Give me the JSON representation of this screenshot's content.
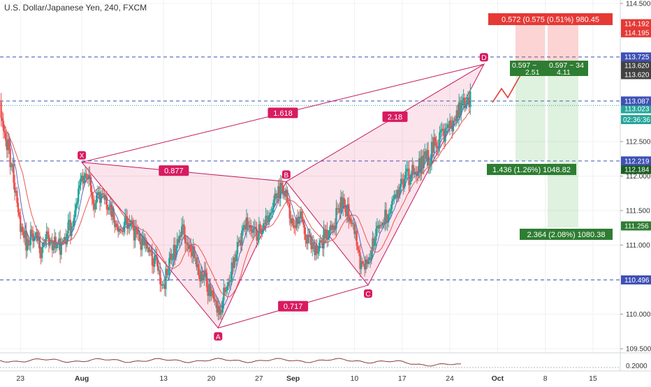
{
  "header": {
    "title": "U.S. Dollar/Japanese Yen, 240, FXCM"
  },
  "chart_data": {
    "type": "candlestick",
    "ylim": [
      109.45,
      114.55
    ],
    "xlim": [
      -4,
      87
    ],
    "y_ticks": [
      "114.500",
      "112.500",
      "112.000",
      "111.500",
      "111.000",
      "110.000",
      "109.500"
    ],
    "x_ticks": [
      {
        "label": "23",
        "day": -1
      },
      {
        "label": "Aug",
        "day": 8
      },
      {
        "label": "13",
        "day": 20
      },
      {
        "label": "20",
        "day": 27
      },
      {
        "label": "27",
        "day": 34
      },
      {
        "label": "Sep",
        "day": 39
      },
      {
        "label": "10",
        "day": 48
      },
      {
        "label": "17",
        "day": 55
      },
      {
        "label": "24",
        "day": 62
      },
      {
        "label": "Oct",
        "day": 69
      },
      {
        "label": "8",
        "day": 76
      },
      {
        "label": "15",
        "day": 83
      }
    ],
    "close_series": [
      [
        -4,
        113.08
      ],
      [
        -3,
        112.5
      ],
      [
        -2,
        112.0
      ],
      [
        -1,
        111.3
      ],
      [
        0,
        111.0
      ],
      [
        1,
        111.2
      ],
      [
        2,
        110.9
      ],
      [
        3,
        111.1
      ],
      [
        4,
        111.0
      ],
      [
        5,
        111.0
      ],
      [
        6,
        111.2
      ],
      [
        7,
        111.4
      ],
      [
        8,
        112.0
      ],
      [
        9,
        111.9
      ],
      [
        10,
        111.6
      ],
      [
        11,
        111.8
      ],
      [
        12,
        111.5
      ],
      [
        13,
        111.3
      ],
      [
        14,
        111.2
      ],
      [
        15,
        111.4
      ],
      [
        16,
        111.1
      ],
      [
        17,
        111.0
      ],
      [
        18,
        110.9
      ],
      [
        19,
        110.7
      ],
      [
        20,
        110.4
      ],
      [
        21,
        110.8
      ],
      [
        22,
        111.0
      ],
      [
        23,
        111.2
      ],
      [
        24,
        111.0
      ],
      [
        25,
        110.6
      ],
      [
        26,
        110.5
      ],
      [
        27,
        110.3
      ],
      [
        28,
        110.0
      ],
      [
        29,
        110.3
      ],
      [
        30,
        110.7
      ],
      [
        31,
        111.0
      ],
      [
        32,
        111.3
      ],
      [
        33,
        111.1
      ],
      [
        34,
        111.2
      ],
      [
        35,
        111.3
      ],
      [
        36,
        111.6
      ],
      [
        37,
        111.8
      ],
      [
        38,
        111.7
      ],
      [
        39,
        111.3
      ],
      [
        40,
        111.5
      ],
      [
        41,
        111.1
      ],
      [
        42,
        110.9
      ],
      [
        43,
        111.0
      ],
      [
        44,
        111.2
      ],
      [
        45,
        111.3
      ],
      [
        46,
        111.6
      ],
      [
        47,
        111.5
      ],
      [
        48,
        111.2
      ],
      [
        49,
        110.7
      ],
      [
        50,
        110.8
      ],
      [
        51,
        111.1
      ],
      [
        52,
        111.3
      ],
      [
        53,
        111.5
      ],
      [
        54,
        111.7
      ],
      [
        55,
        111.9
      ],
      [
        56,
        112.0
      ],
      [
        57,
        112.1
      ],
      [
        58,
        112.2
      ],
      [
        59,
        112.3
      ],
      [
        60,
        112.5
      ],
      [
        61,
        112.6
      ],
      [
        62,
        112.7
      ],
      [
        63,
        112.9
      ],
      [
        64,
        113.0
      ],
      [
        65,
        113.1
      ]
    ],
    "levels": [
      {
        "price": 113.725,
        "label": "113.725",
        "color": "#3f51b5"
      },
      {
        "price": 113.087,
        "label": "113.087",
        "color": "#3f51b5"
      },
      {
        "price": 112.219,
        "label": "112.219",
        "color": "#3f51b5"
      },
      {
        "price": 110.496,
        "label": "110.496",
        "color": "#3f51b5"
      }
    ],
    "price_tags": [
      {
        "price": 114.192,
        "label": "114.192",
        "color": "#e53935"
      },
      {
        "price": 114.195,
        "label": "114.195",
        "color": "#e53935"
      },
      {
        "price": 113.62,
        "label": "113.620",
        "color": "#424242"
      },
      {
        "price": 113.62,
        "label": "113.620",
        "color": "#424242"
      },
      {
        "price": 113.023,
        "label": "113.023",
        "color": "#26a69a"
      },
      {
        "price": 112.184,
        "label": "112.184",
        "color": "#1b5e20"
      },
      {
        "price": 111.256,
        "label": "111.256",
        "color": "#2e7d32"
      }
    ],
    "countdown": "02:36:36",
    "pattern": {
      "points": [
        {
          "label": "X",
          "day": 8,
          "price": 112.2
        },
        {
          "label": "A",
          "day": 28,
          "price": 109.8
        },
        {
          "label": "B",
          "day": 38,
          "price": 111.92
        },
        {
          "label": "C",
          "day": 50,
          "price": 110.42
        },
        {
          "label": "D",
          "day": 67,
          "price": 113.62
        }
      ],
      "ratios": [
        "1.618",
        "0.877",
        "0.717",
        "2.18"
      ]
    },
    "trade_boxes": [
      {
        "label": "0.572 (0.575 (0.51%) 980.45",
        "color": "#e53935"
      },
      {
        "label": "0.597 ~ 2.51",
        "color": "#2e7d32"
      },
      {
        "label": "0.597 ~ 34 4.11",
        "color": "#2e7d32"
      },
      {
        "label": "1.436 (1.26%) 1048.82",
        "color": "#2e7d32"
      },
      {
        "label": "2.364 (2.08%) 1080.38",
        "color": "#2e7d32"
      }
    ],
    "indicator": {
      "label": "0.2000"
    },
    "colors": {
      "up": "#26a69a",
      "down": "#ef5350",
      "pattern": "#c2185b"
    }
  }
}
